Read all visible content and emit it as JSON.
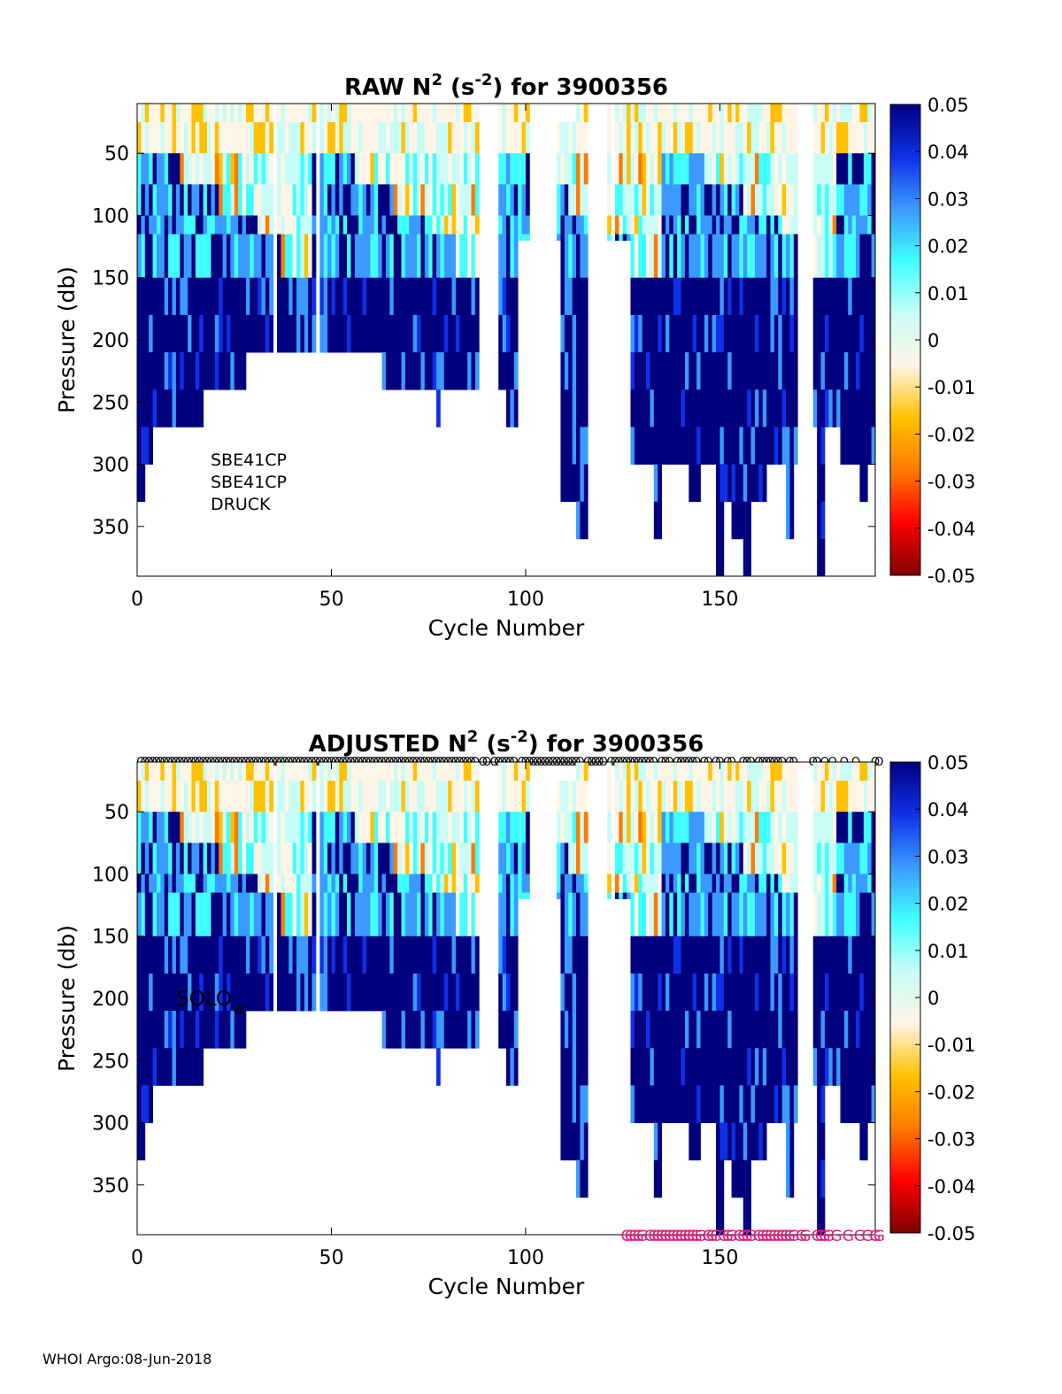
{
  "footer": "WHOI Argo:08-Jun-2018",
  "sensor_notes": [
    "SBE41CP",
    "SBE41CP",
    "DRUCK"
  ],
  "solo_label": {
    "main": "SOLO",
    "sub": "W"
  },
  "colormap": [
    "#7f0000",
    "#ff0000",
    "#ff7a00",
    "#ffc100",
    "#fff5e6",
    "#c8fcf6",
    "#41ffff",
    "#3a9aff",
    "#1030e8",
    "#00007f"
  ],
  "chart_data": [
    {
      "type": "heatmap",
      "id": "raw",
      "title": {
        "main": "RAW N",
        "sup1": "2",
        "mid": " (s",
        "sup2": "-2",
        "end": ") for 3900356"
      },
      "xlabel": "Cycle Number",
      "ylabel": "Pressure (db)",
      "xlim": [
        0,
        190
      ],
      "ylim": [
        10,
        390
      ],
      "y_reversed": true,
      "xticks": [
        0,
        50,
        100,
        150
      ],
      "yticks": [
        50,
        100,
        150,
        200,
        250,
        300,
        350
      ],
      "clim": [
        -0.05,
        0.05
      ],
      "colorbar_ticks": [
        "0.05",
        "0.04",
        "0.03",
        "0.02",
        "0.01",
        "0",
        "-0.01",
        "-0.02",
        "-0.03",
        "-0.04",
        "-0.05"
      ]
    },
    {
      "type": "heatmap",
      "id": "adjusted",
      "title": {
        "main": "ADJUSTED N",
        "sup1": "2",
        "mid": " (s",
        "sup2": "-2",
        "end": ") for 3900356"
      },
      "xlabel": "Cycle Number",
      "ylabel": "Pressure (db)",
      "xlim": [
        0,
        190
      ],
      "ylim": [
        10,
        390
      ],
      "y_reversed": true,
      "xticks": [
        0,
        50,
        100,
        150
      ],
      "yticks": [
        50,
        100,
        150,
        200,
        250,
        300,
        350
      ],
      "clim": [
        -0.05,
        0.05
      ],
      "colorbar_ticks": [
        "0.05",
        "0.04",
        "0.03",
        "0.02",
        "0.01",
        "0",
        "-0.01",
        "-0.02",
        "-0.03",
        "-0.04",
        "-0.05"
      ],
      "top_marker_symbol": "O",
      "bottom_marker_symbol": "G",
      "top_marker_cycles": [
        1,
        2,
        3,
        4,
        5,
        6,
        7,
        8,
        9,
        10,
        11,
        12,
        13,
        14,
        15,
        16,
        17,
        18,
        19,
        20,
        21,
        22,
        23,
        24,
        25,
        26,
        27,
        28,
        29,
        30,
        31,
        32,
        33,
        34,
        35,
        36,
        37,
        38,
        39,
        40,
        41,
        42,
        43,
        44,
        45,
        46,
        47,
        48,
        49,
        50,
        51,
        52,
        53,
        54,
        55,
        56,
        57,
        58,
        59,
        60,
        61,
        62,
        63,
        64,
        65,
        66,
        67,
        68,
        69,
        70,
        71,
        72,
        73,
        74,
        75,
        76,
        77,
        78,
        79,
        80,
        81,
        82,
        83,
        84,
        85,
        86,
        87,
        89,
        90,
        92,
        93,
        94,
        95,
        96,
        97,
        99,
        100,
        101,
        102,
        103,
        104,
        105,
        106,
        107,
        108,
        109,
        110,
        111,
        112,
        113,
        114,
        116,
        117,
        118,
        119,
        120,
        122,
        123,
        124,
        125,
        126,
        127,
        128,
        129,
        130,
        131,
        132,
        133,
        135,
        136,
        137,
        139,
        140,
        141,
        142,
        143,
        144,
        146,
        147,
        149,
        150,
        152,
        153,
        156,
        157,
        158,
        160,
        161,
        162,
        163,
        164,
        165,
        166,
        168,
        169,
        174,
        175,
        177,
        179,
        182,
        185,
        190,
        191
      ],
      "bottom_marker_cycles": [
        126,
        127,
        128,
        129,
        130,
        132,
        133,
        134,
        135,
        136,
        137,
        138,
        139,
        140,
        141,
        142,
        143,
        144,
        145,
        147,
        148,
        149,
        151,
        152,
        153,
        155,
        156,
        157,
        158,
        160,
        161,
        162,
        163,
        164,
        165,
        166,
        167,
        168,
        169,
        171,
        172,
        175,
        176,
        177,
        178,
        180,
        183,
        186,
        188,
        190,
        191
      ]
    }
  ]
}
